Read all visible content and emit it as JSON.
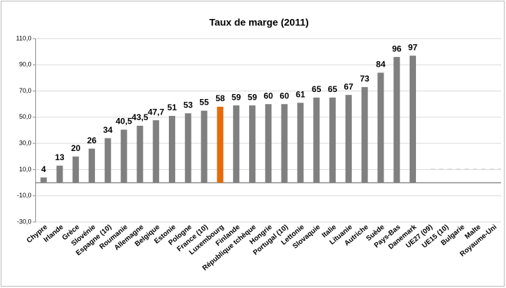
{
  "chart_data": {
    "type": "bar",
    "title": "Taux de marge  (2011)",
    "categories": [
      "Chypre",
      "Irlande",
      "Grèce",
      "Slovénie",
      "Espagne (10)",
      "Roumanie",
      "Allemagne",
      "Belgique",
      "Estonie",
      "Pologne",
      "France (10)",
      "Luxembourg",
      "Finlande",
      "République tchèque",
      "Hongrie",
      "Portugal (10)",
      "Lettonie",
      "Slovaquie",
      "Italie",
      "Lituanie",
      "Autriche",
      "Suède",
      "Pays-Bas",
      "Danemark",
      "UE27 (09)",
      "UE15 (10)",
      "Bulgarie",
      "Malte",
      "Royaume-Uni"
    ],
    "values": [
      4,
      13,
      20,
      26,
      34,
      40.5,
      43.5,
      47.7,
      51,
      53,
      55,
      58,
      59,
      59,
      60,
      60,
      61,
      65,
      65,
      67,
      73,
      84,
      96,
      97,
      null,
      null,
      null,
      null,
      null
    ],
    "value_labels": [
      "4",
      "13",
      "20",
      "26",
      "34",
      "40,5",
      "43,5",
      "47,7",
      "51",
      "53",
      "55",
      "58",
      "59",
      "59",
      "60",
      "60",
      "61",
      "65",
      "65",
      "67",
      "73",
      "84",
      "96",
      "97",
      null,
      null,
      null,
      null,
      null
    ],
    "colors": [
      "#808080",
      "#808080",
      "#808080",
      "#808080",
      "#808080",
      "#808080",
      "#808080",
      "#808080",
      "#808080",
      "#808080",
      "#808080",
      "#e46c0a",
      "#808080",
      "#808080",
      "#808080",
      "#808080",
      "#808080",
      "#808080",
      "#808080",
      "#808080",
      "#808080",
      "#808080",
      "#808080",
      "#808080",
      "#808080",
      "#808080",
      "#808080",
      "#808080",
      "#808080"
    ],
    "ylim": [
      -30,
      110
    ],
    "yticks": [
      {
        "value": -30,
        "label": "-30,0"
      },
      {
        "value": -10,
        "label": "-10,0"
      },
      {
        "value": 10,
        "label": "10,0"
      },
      {
        "value": 30,
        "label": "30,0"
      },
      {
        "value": 50,
        "label": "50,0"
      },
      {
        "value": 70,
        "label": "70,0"
      },
      {
        "value": 90,
        "label": "90,0"
      },
      {
        "value": 110,
        "label": "110,0"
      }
    ],
    "grid": true
  }
}
